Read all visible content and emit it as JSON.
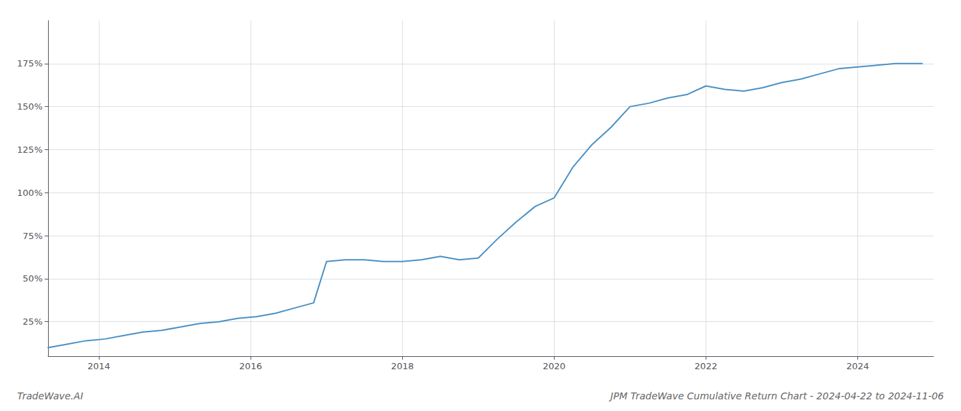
{
  "chart_data": {
    "type": "line",
    "title": "JPM TradeWave Cumulative Return Chart - 2024-04-22 to 2024-11-06",
    "annotations": [
      "TradeWave.AI"
    ],
    "color": "#4a90c4",
    "x": [
      2013.33,
      2013.58,
      2013.83,
      2014.08,
      2014.33,
      2014.58,
      2014.83,
      2015.08,
      2015.33,
      2015.58,
      2015.83,
      2016.08,
      2016.33,
      2016.58,
      2016.83,
      2017.0,
      2017.25,
      2017.5,
      2017.75,
      2018.0,
      2018.25,
      2018.5,
      2018.75,
      2019.0,
      2019.25,
      2019.5,
      2019.75,
      2020.0,
      2020.25,
      2020.5,
      2020.75,
      2021.0,
      2021.25,
      2021.5,
      2021.75,
      2022.0,
      2022.25,
      2022.5,
      2022.75,
      2023.0,
      2023.25,
      2023.5,
      2023.75,
      2024.0,
      2024.25,
      2024.5,
      2024.75,
      2024.85
    ],
    "values": [
      10,
      12,
      14,
      15,
      17,
      19,
      20,
      22,
      24,
      25,
      27,
      28,
      30,
      33,
      36,
      60,
      61,
      61,
      60,
      60,
      61,
      63,
      61,
      62,
      73,
      83,
      92,
      97,
      115,
      128,
      138,
      150,
      152,
      155,
      157,
      162,
      160,
      159,
      161,
      164,
      166,
      169,
      172,
      173,
      174,
      175,
      175,
      175
    ],
    "xlim": [
      2013.33,
      2025.0
    ],
    "ylim": [
      5,
      200
    ],
    "xticks": [
      2014,
      2016,
      2018,
      2020,
      2022,
      2024
    ],
    "yticks": [
      {
        "value": 25,
        "label": "25%"
      },
      {
        "value": 50,
        "label": "50%"
      },
      {
        "value": 75,
        "label": "75%"
      },
      {
        "value": 100,
        "label": "100%"
      },
      {
        "value": 125,
        "label": "125%"
      },
      {
        "value": 150,
        "label": "150%"
      },
      {
        "value": 175,
        "label": "175%"
      }
    ],
    "grid": true
  }
}
